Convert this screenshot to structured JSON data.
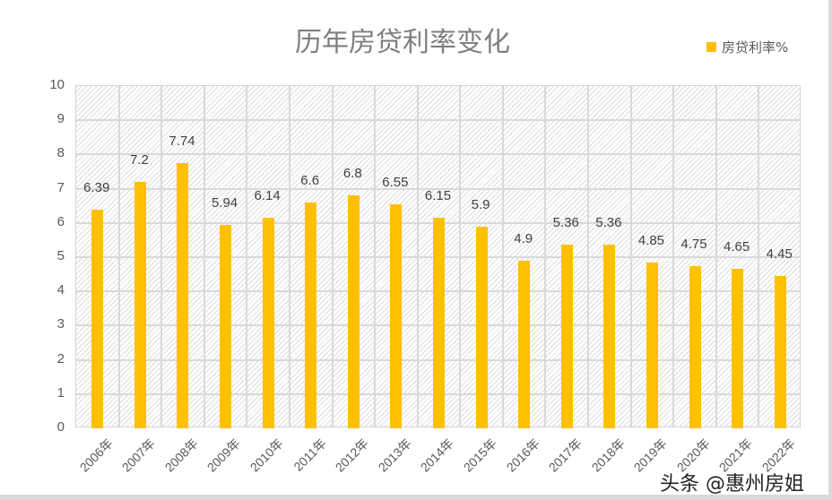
{
  "chart_data": {
    "type": "bar",
    "title": "历年房贷利率变化",
    "legend": {
      "entries": [
        "房贷利率%"
      ],
      "position": "top-right"
    },
    "categories": [
      "2006年",
      "2007年",
      "2008年",
      "2009年",
      "2010年",
      "2011年",
      "2012年",
      "2013年",
      "2014年",
      "2015年",
      "2016年",
      "2017年",
      "2018年",
      "2019年",
      "2020年",
      "2021年",
      "2022年"
    ],
    "series": [
      {
        "name": "房贷利率%",
        "color": "#FFC000",
        "values": [
          6.39,
          7.2,
          7.74,
          5.94,
          6.14,
          6.6,
          6.8,
          6.55,
          6.15,
          5.9,
          4.9,
          5.36,
          5.36,
          4.85,
          4.75,
          4.65,
          4.45
        ]
      }
    ],
    "data_labels": [
      "6.39",
      "7.2",
      "7.74",
      "5.94",
      "6.14",
      "6.6",
      "6.8",
      "6.55",
      "6.15",
      "5.9",
      "4.9",
      "5.36",
      "5.36",
      "4.85",
      "4.75",
      "4.65",
      "4.45"
    ],
    "xlabel": "",
    "ylabel": "",
    "ylim": [
      0,
      10
    ],
    "yticks": [
      "0",
      "1",
      "2",
      "3",
      "4",
      "5",
      "6",
      "7",
      "8",
      "9",
      "10"
    ],
    "grid": true
  },
  "watermark": "头条 @惠州房姐"
}
